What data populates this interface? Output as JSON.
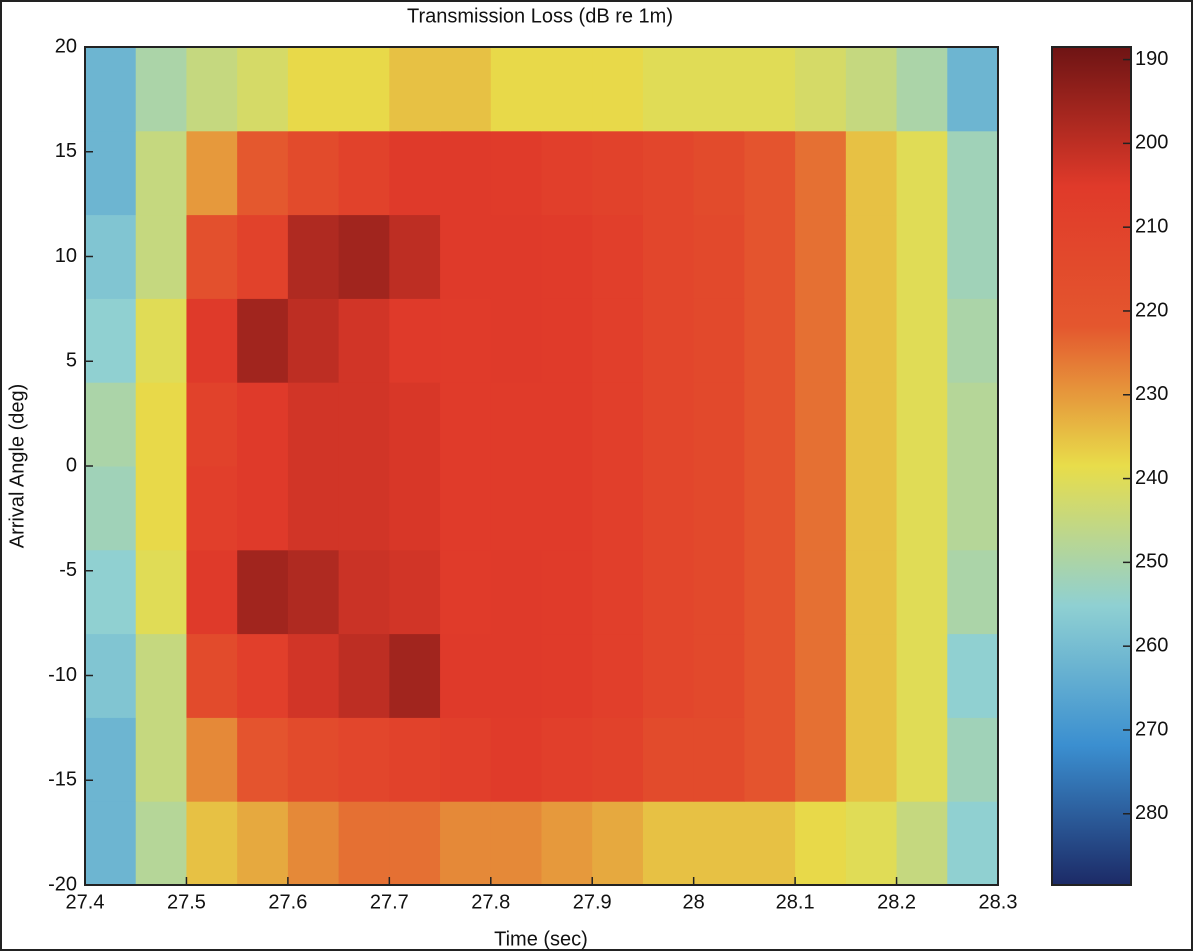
{
  "chart_data": {
    "type": "heatmap",
    "title": "Transmission Loss (dB re 1m)",
    "x_label": "Time (sec)",
    "y_label": "Arrival Angle (deg)",
    "x": [
      27.425,
      27.475,
      27.525,
      27.575,
      27.625,
      27.675,
      27.725,
      27.775,
      27.825,
      27.875,
      27.925,
      27.975,
      28.025,
      28.075,
      28.125,
      28.175,
      28.225,
      28.275
    ],
    "y": [
      -18,
      -14,
      -10,
      -6,
      -2,
      2,
      6,
      10,
      14,
      18
    ],
    "values": [
      [
        262,
        248,
        235,
        232,
        228,
        225,
        225,
        228,
        228,
        230,
        232,
        235,
        235,
        235,
        238,
        240,
        245,
        255
      ],
      [
        262,
        245,
        228,
        220,
        215,
        212,
        210,
        208,
        206,
        208,
        210,
        215,
        215,
        220,
        225,
        235,
        240,
        252
      ],
      [
        258,
        245,
        215,
        208,
        203,
        200,
        196,
        205,
        205,
        206,
        208,
        212,
        214,
        220,
        225,
        235,
        240,
        255
      ],
      [
        255,
        240,
        205,
        196,
        198,
        202,
        203,
        206,
        205,
        206,
        208,
        212,
        214,
        220,
        225,
        235,
        240,
        250
      ],
      [
        252,
        238,
        208,
        205,
        203,
        203,
        204,
        206,
        206,
        206,
        208,
        212,
        214,
        220,
        225,
        235,
        240,
        248
      ],
      [
        250,
        238,
        210,
        205,
        203,
        203,
        204,
        206,
        206,
        206,
        208,
        212,
        214,
        220,
        225,
        235,
        240,
        248
      ],
      [
        255,
        240,
        205,
        196,
        200,
        203,
        205,
        206,
        205,
        206,
        208,
        212,
        214,
        220,
        225,
        235,
        240,
        250
      ],
      [
        258,
        245,
        218,
        210,
        198,
        196,
        200,
        205,
        205,
        206,
        208,
        212,
        214,
        220,
        225,
        235,
        240,
        252
      ],
      [
        262,
        245,
        230,
        222,
        215,
        210,
        205,
        205,
        206,
        208,
        210,
        212,
        215,
        220,
        225,
        235,
        240,
        252
      ],
      [
        262,
        250,
        245,
        242,
        238,
        238,
        235,
        235,
        238,
        238,
        238,
        240,
        240,
        240,
        242,
        245,
        250,
        262
      ]
    ],
    "xlim": [
      27.4,
      28.3
    ],
    "xticks": [
      27.4,
      27.5,
      27.6,
      27.7,
      27.8,
      27.9,
      28,
      28.1,
      28.2,
      28.3
    ],
    "ylim": [
      -20,
      20
    ],
    "yticks": [
      -20,
      -15,
      -10,
      -5,
      0,
      5,
      10,
      15,
      20
    ],
    "clim": [
      188.5,
      288.5
    ],
    "cticks": [
      190,
      200,
      210,
      220,
      230,
      240,
      250,
      260,
      270,
      280
    ],
    "colormap": [
      "#6e1414",
      "#e03a2a",
      "#e4572e",
      "#e8dd4a",
      "#8fd0d2",
      "#3b8fd0",
      "#1c2a66"
    ]
  }
}
